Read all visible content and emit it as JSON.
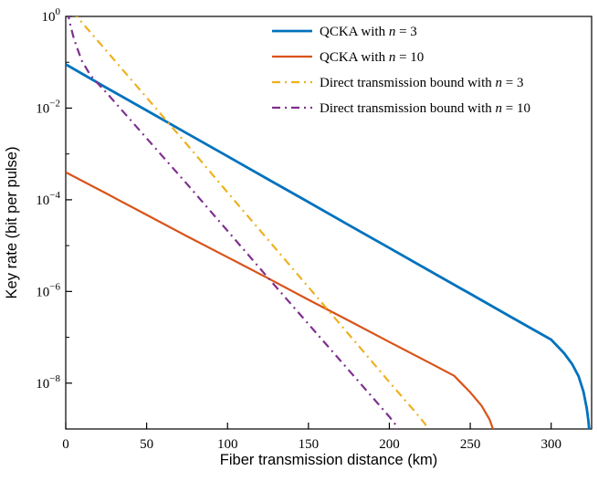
{
  "chart_data": {
    "type": "line",
    "title": "",
    "xlabel": "Fiber transmission distance (km)",
    "ylabel": "Key rate (bit per pulse)",
    "x_scale": "linear",
    "y_scale": "log",
    "xlim": [
      0,
      325
    ],
    "ylim": [
      1e-09,
      1
    ],
    "x_ticks": [
      0,
      50,
      100,
      150,
      200,
      250,
      300
    ],
    "y_tick_exponents": [
      0,
      -2,
      -4,
      -6,
      -8
    ],
    "y_minor_tick_exponents": [
      -1,
      -3,
      -5,
      -7
    ],
    "grid": false,
    "legend": {
      "position": "upper-center-right",
      "border": false
    },
    "series": [
      {
        "name": "QCKA with n = 3",
        "color": "#0072BD",
        "style": "solid",
        "width": 2.8,
        "points": [
          [
            0,
            0.09
          ],
          [
            25,
            0.028
          ],
          [
            50,
            0.0089
          ],
          [
            75,
            0.0028
          ],
          [
            100,
            0.00089
          ],
          [
            125,
            0.00028
          ],
          [
            150,
            8.9e-05
          ],
          [
            175,
            2.8e-05
          ],
          [
            200,
            8.9e-06
          ],
          [
            225,
            2.8e-06
          ],
          [
            250,
            8.9e-07
          ],
          [
            275,
            2.8e-07
          ],
          [
            300,
            8.9e-08
          ],
          [
            308,
            4.5e-08
          ],
          [
            313,
            2.6e-08
          ],
          [
            317,
            1.4e-08
          ],
          [
            320,
            6.5e-09
          ],
          [
            322,
            2.8e-09
          ],
          [
            323,
            1.5e-09
          ],
          [
            324,
            6e-10
          ]
        ]
      },
      {
        "name": "QCKA with n = 10",
        "color": "#D95319",
        "style": "solid",
        "width": 2.2,
        "points": [
          [
            0,
            0.0004
          ],
          [
            25,
            0.000138
          ],
          [
            50,
            4.7e-05
          ],
          [
            75,
            1.6e-05
          ],
          [
            100,
            5.6e-06
          ],
          [
            125,
            1.95e-06
          ],
          [
            150,
            6.6e-07
          ],
          [
            175,
            2.3e-07
          ],
          [
            200,
            7.9e-08
          ],
          [
            225,
            2.75e-08
          ],
          [
            240,
            1.45e-08
          ],
          [
            250,
            6.3e-09
          ],
          [
            257,
            3.2e-09
          ],
          [
            262,
            1.6e-09
          ],
          [
            265,
            8e-10
          ],
          [
            267,
            4e-10
          ]
        ]
      },
      {
        "name": "Direct transmission bound with n = 3",
        "color": "#EDB120",
        "style": "dashdot",
        "width": 2.2,
        "points": [
          [
            4,
            1.3
          ],
          [
            25,
            0.18
          ],
          [
            50,
            0.017
          ],
          [
            75,
            0.0016
          ],
          [
            100,
            0.000145
          ],
          [
            125,
            1.35e-05
          ],
          [
            150,
            1.25e-06
          ],
          [
            175,
            1.15e-07
          ],
          [
            200,
            1.05e-08
          ],
          [
            215,
            2.6e-09
          ],
          [
            222,
            1.3e-09
          ],
          [
            226,
            6e-10
          ]
        ]
      },
      {
        "name": "Direct transmission bound with n = 10",
        "color": "#7E2F8E",
        "style": "dashdot",
        "width": 2.2,
        "points": [
          [
            1,
            1.3
          ],
          [
            3,
            0.62
          ],
          [
            5,
            0.33
          ],
          [
            8,
            0.165
          ],
          [
            10,
            0.107
          ],
          [
            15,
            0.054
          ],
          [
            20,
            0.034
          ],
          [
            25,
            0.022
          ],
          [
            50,
            0.0022
          ],
          [
            75,
            0.00022
          ],
          [
            100,
            2.1e-05
          ],
          [
            125,
            2e-06
          ],
          [
            150,
            1.95e-07
          ],
          [
            175,
            1.9e-08
          ],
          [
            200,
            1.85e-09
          ],
          [
            205,
            1.1e-09
          ],
          [
            208,
            6e-10
          ]
        ]
      }
    ]
  }
}
